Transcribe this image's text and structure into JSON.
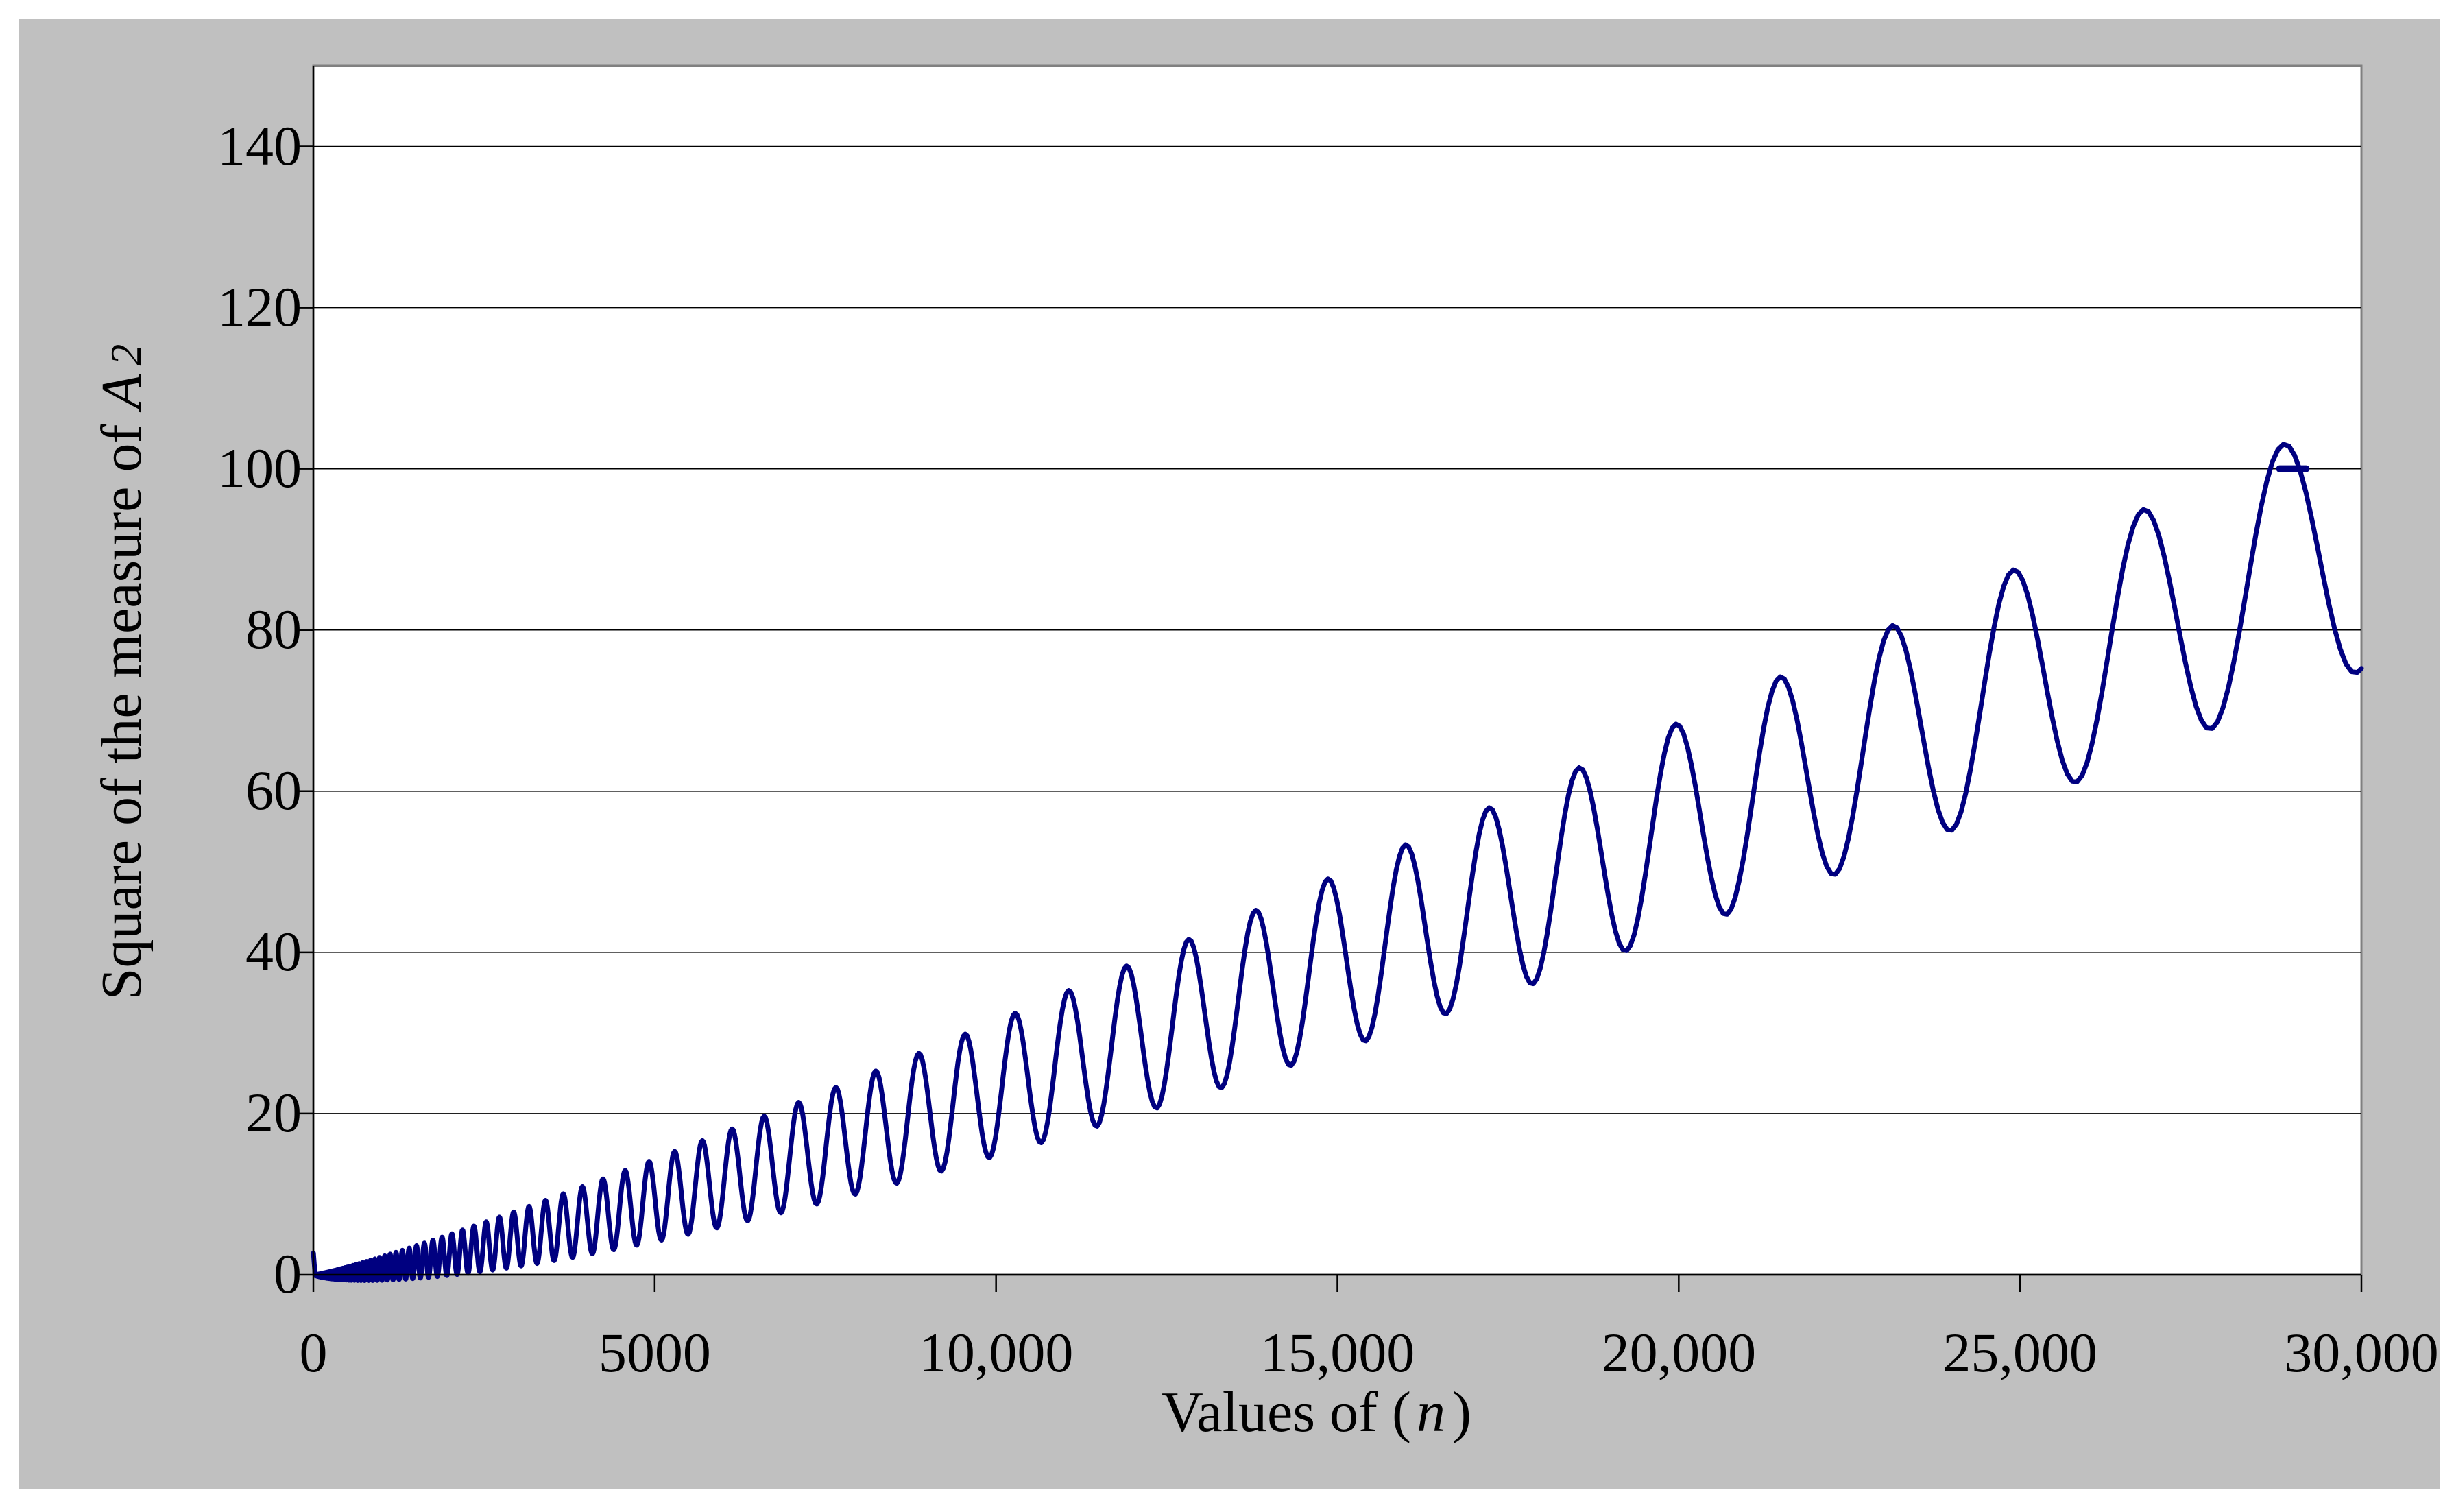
{
  "chart": {
    "background_color": "#c0c0c0",
    "plot_background_color": "#ffffff",
    "plot_border_color": "#808080",
    "gridline_color": "#000000",
    "axis_color": "#000000",
    "series_color": "#000080",
    "x_axis": {
      "title_prefix": "Values of (",
      "title_var": "n",
      "title_suffix": ")",
      "ticks": [
        {
          "value": 0,
          "label": "0"
        },
        {
          "value": 5000,
          "label": "5000"
        },
        {
          "value": 10000,
          "label": "10,000"
        },
        {
          "value": 15000,
          "label": "15,000"
        },
        {
          "value": 20000,
          "label": "20,000"
        },
        {
          "value": 25000,
          "label": "25,000"
        },
        {
          "value": 30000,
          "label": "30,000"
        }
      ],
      "min": 0,
      "max": 30000
    },
    "y_axis": {
      "title_prefix": "Square of the measure of",
      "title_var": "A",
      "title_sub": "2",
      "ticks": [
        {
          "value": 0,
          "label": "0"
        },
        {
          "value": 20,
          "label": "20"
        },
        {
          "value": 40,
          "label": "40"
        },
        {
          "value": 60,
          "label": "60"
        },
        {
          "value": 80,
          "label": "80"
        },
        {
          "value": 100,
          "label": "100"
        },
        {
          "value": 120,
          "label": "120"
        },
        {
          "value": 140,
          "label": "140"
        }
      ],
      "min": 0,
      "max": 150
    }
  },
  "chart_data": {
    "type": "line",
    "title": "",
    "xlabel": "Values of (n )",
    "ylabel": "Square of the measure of A 2",
    "xlim": [
      0,
      30000
    ],
    "ylim": [
      0,
      150
    ],
    "x_tick_labels": [
      "0",
      "5000",
      "10,000",
      "15,000",
      "20,000",
      "25,000",
      "30,000"
    ],
    "y_tick_labels": [
      "0",
      "20",
      "40",
      "60",
      "80",
      "100",
      "120",
      "140"
    ],
    "grid": "horizontal-only",
    "legend": "none",
    "series": [
      {
        "name": "square of the measure of A2",
        "color": "#000080",
        "style": "solid oscillating curve, period proportional to n, amplitude growing roughly linearly"
      }
    ],
    "curve_model": {
      "form": "f(n) = n * ((mean_slope*ln(n)+mean_intercept) + (amp_base+amp_slope*max(0,amp_ln_ref-ln(n))) * sin(omega*ln(n)+phi))",
      "omega": 85.21,
      "phi": -0.152,
      "mean_slope": 0.00067,
      "mean_intercept": -0.00386,
      "amp_base": 0.00055,
      "amp_slope": 0.00027,
      "amp_ln_ref": 10.27,
      "n_start": 30,
      "n_end": 30000,
      "samples_per_cycle": 26
    },
    "lead_in": [
      [
        1,
        2.7
      ],
      [
        25,
        0.05
      ]
    ],
    "anomaly_segment": {
      "value": 100,
      "n_start": 28800,
      "n_end": 29190
    },
    "key_peaks": [
      [
        6600,
        19.6
      ],
      [
        7122,
        21.1
      ],
      [
        7684,
        22.7
      ],
      [
        8287,
        24.6
      ],
      [
        8879,
        26.7
      ],
      [
        9552,
        29.0
      ],
      [
        10285,
        31.2
      ],
      [
        11058,
        34.0
      ],
      [
        11942,
        36.8
      ],
      [
        12856,
        40.3
      ],
      [
        13670,
        43.7
      ],
      [
        14750,
        47.5
      ],
      [
        15910,
        51.9
      ],
      [
        17110,
        56.3
      ],
      [
        18430,
        61.1
      ],
      [
        19830,
        66.9
      ],
      [
        21350,
        73.0
      ],
      [
        23020,
        79.5
      ],
      [
        24870,
        86.6
      ],
      [
        26730,
        94.5
      ],
      [
        28840,
        103.3
      ]
    ],
    "key_troughs": [
      [
        13190,
        24.3
      ],
      [
        14190,
        27.1
      ],
      [
        15230,
        30.8
      ],
      [
        16390,
        33.5
      ],
      [
        17630,
        36.9
      ],
      [
        18990,
        41.0
      ],
      [
        20580,
        43.7
      ],
      [
        27800,
        69.0
      ],
      [
        30000,
        75.4
      ]
    ],
    "end_point": [
      30000,
      75.4
    ]
  }
}
